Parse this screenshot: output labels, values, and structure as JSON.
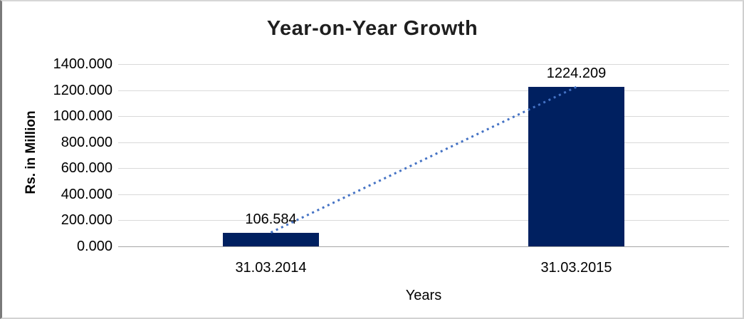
{
  "chart": {
    "title": "Year-on-Year Growth",
    "y_axis_title": "Rs. in Million",
    "x_axis_title": "Years"
  },
  "chart_data": {
    "type": "bar",
    "title": "Year-on-Year Growth",
    "xlabel": "Years",
    "ylabel": "Rs. in Million",
    "categories": [
      "31.03.2014",
      "31.03.2015"
    ],
    "values": [
      106.584,
      1224.209
    ],
    "data_labels": [
      "106.584",
      "1224.209"
    ],
    "ylim": [
      0,
      1400
    ],
    "ytick_step": 200,
    "ytick_labels": [
      "0.000",
      "200.000",
      "400.000",
      "600.000",
      "800.000",
      "1000.000",
      "1200.000",
      "1400.000"
    ],
    "grid": true,
    "legend_position": "none",
    "colors": {
      "bar": "#002060",
      "trendline": "#4472C4",
      "gridline": "#d9d9d9",
      "axis_line": "#a6a6a6",
      "title_text": "#1f1f1f",
      "label_text": "#000000"
    },
    "trendline": {
      "style": "dotted",
      "color": "#4472C4",
      "from_category": "31.03.2014",
      "to_category": "31.03.2015"
    }
  }
}
